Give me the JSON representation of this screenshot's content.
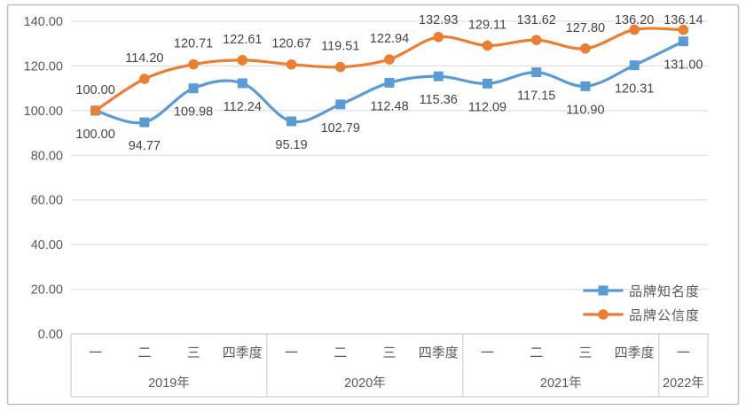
{
  "chart_data": {
    "type": "line",
    "title": "",
    "grid": true,
    "legend_position": "inside-right-lower",
    "y_axis": {
      "min": 0,
      "max": 140,
      "step": 20,
      "tick_labels": [
        "0.00",
        "20.00",
        "40.00",
        "60.00",
        "80.00",
        "100.00",
        "120.00",
        "140.00"
      ]
    },
    "x_axis": {
      "groups": [
        {
          "label": "2019年",
          "ticks": [
            "一",
            "二",
            "三",
            "四季度"
          ]
        },
        {
          "label": "2020年",
          "ticks": [
            "一",
            "二",
            "三",
            "四季度"
          ]
        },
        {
          "label": "2021年",
          "ticks": [
            "一",
            "二",
            "三",
            "四季度"
          ]
        },
        {
          "label": "2022年",
          "ticks": [
            "一"
          ]
        }
      ]
    },
    "series": [
      {
        "name": "品牌知名度",
        "color": "#5B9BD5",
        "marker": "square",
        "label_position": "below",
        "values": [
          100.0,
          94.77,
          109.98,
          112.24,
          95.19,
          102.79,
          112.48,
          115.36,
          112.09,
          117.15,
          110.9,
          120.31,
          131.0
        ]
      },
      {
        "name": "品牌公信度",
        "color": "#ED7D31",
        "marker": "circle",
        "label_position": "above",
        "values": [
          100.0,
          114.2,
          120.71,
          122.61,
          120.67,
          119.51,
          122.94,
          132.93,
          129.11,
          131.62,
          127.8,
          136.2,
          136.14
        ]
      }
    ]
  },
  "colors": {
    "background": "#FFFFFF",
    "frame_border": "#BFBFBF",
    "gridline": "#D9D9D9",
    "axis_line": "#BFBFBF",
    "table_line": "#C6C6C6",
    "axis_text": "#595959",
    "data_label_text": "#444444"
  }
}
